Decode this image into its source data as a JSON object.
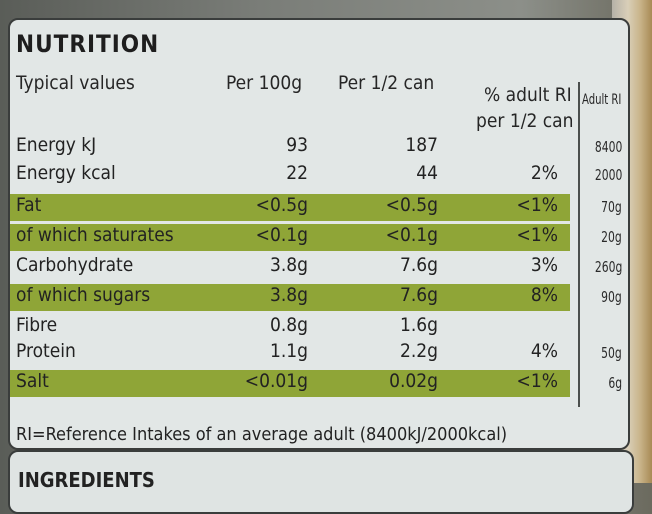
{
  "title": "NUTRITION",
  "headers": {
    "typical": "Typical values",
    "per100": "Per 100g",
    "perhalf": "Per 1/2 can",
    "pct1": "% adult RI",
    "pct2": "per 1/2 can",
    "adultri": "Adult RI"
  },
  "rows": [
    {
      "name": "Energy kJ",
      "p100": "93",
      "half": "187",
      "pct": "",
      "ri": "8400"
    },
    {
      "name": "Energy kcal",
      "p100": "22",
      "half": "44",
      "pct": "2%",
      "ri": "2000"
    },
    {
      "name": "Fat",
      "p100": "<0.5g",
      "half": "<0.5g",
      "pct": "<1%",
      "ri": "70g"
    },
    {
      "name": "of which saturates",
      "p100": "<0.1g",
      "half": "<0.1g",
      "pct": "<1%",
      "ri": "20g"
    },
    {
      "name": "Carbohydrate",
      "p100": "3.8g",
      "half": "7.6g",
      "pct": "3%",
      "ri": "260g"
    },
    {
      "name": "of which sugars",
      "p100": "3.8g",
      "half": "7.6g",
      "pct": "8%",
      "ri": "90g"
    },
    {
      "name": "Fibre",
      "p100": "0.8g",
      "half": "1.6g",
      "pct": "",
      "ri": ""
    },
    {
      "name": "Protein",
      "p100": "1.1g",
      "half": "2.2g",
      "pct": "4%",
      "ri": "50g"
    },
    {
      "name": "Salt",
      "p100": "<0.01g",
      "half": "0.02g",
      "pct": "<1%",
      "ri": "6g"
    }
  ],
  "footer": "RI=Reference Intakes of an average adult (8400kJ/2000kcal)",
  "next_section": "INGREDIENTS"
}
